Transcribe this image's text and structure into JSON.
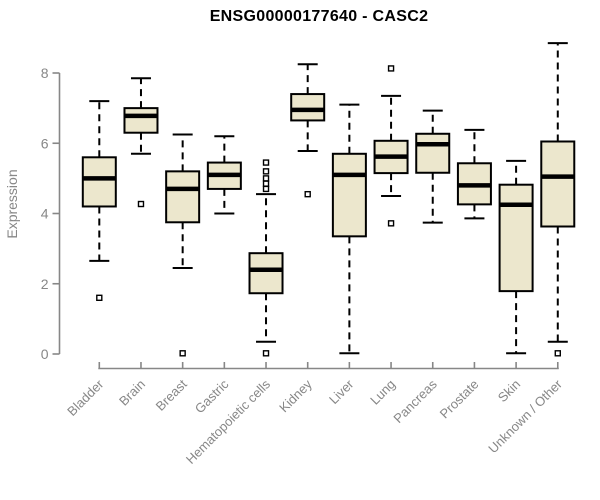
{
  "chart_data": {
    "type": "boxplot",
    "title": "ENSG00000177640 - CASC2",
    "ylabel": "Expression",
    "ylim": [
      0,
      8
    ],
    "yticks": [
      0,
      2,
      4,
      6,
      8
    ],
    "grid": false,
    "legend": "none",
    "categories": [
      "Bladder",
      "Brain",
      "Breast",
      "Gastric",
      "Hematopoietic cells",
      "Kidney",
      "Liver",
      "Lung",
      "Pancreas",
      "Prostate",
      "Skin",
      "Unknown / Other"
    ],
    "boxes": [
      {
        "category": "Bladder",
        "low": 2.65,
        "q1": 4.2,
        "median": 5.0,
        "q3": 5.6,
        "high": 7.2,
        "outliers": [
          1.6
        ]
      },
      {
        "category": "Brain",
        "low": 5.7,
        "q1": 6.3,
        "median": 6.78,
        "q3": 7.0,
        "high": 7.85,
        "outliers": [
          4.27
        ]
      },
      {
        "category": "Breast",
        "low": 2.45,
        "q1": 3.75,
        "median": 4.7,
        "q3": 5.2,
        "high": 6.25,
        "outliers": [
          0.02
        ]
      },
      {
        "category": "Gastric",
        "low": 4.0,
        "q1": 4.7,
        "median": 5.1,
        "q3": 5.45,
        "high": 6.2,
        "outliers": []
      },
      {
        "category": "Hematopoietic cells",
        "low": 0.35,
        "q1": 1.73,
        "median": 2.4,
        "q3": 2.87,
        "high": 4.55,
        "outliers": [
          5.45,
          5.2,
          5.0,
          4.85,
          4.7,
          0.02
        ]
      },
      {
        "category": "Kidney",
        "low": 5.78,
        "q1": 6.65,
        "median": 6.95,
        "q3": 7.4,
        "high": 8.25,
        "outliers": [
          4.55
        ]
      },
      {
        "category": "Liver",
        "low": 0.02,
        "q1": 3.35,
        "median": 5.1,
        "q3": 5.7,
        "high": 7.1,
        "outliers": []
      },
      {
        "category": "Lung",
        "low": 4.5,
        "q1": 5.15,
        "median": 5.62,
        "q3": 6.07,
        "high": 7.35,
        "outliers": [
          8.13,
          3.72
        ]
      },
      {
        "category": "Pancreas",
        "low": 3.74,
        "q1": 5.16,
        "median": 5.97,
        "q3": 6.27,
        "high": 6.93,
        "outliers": []
      },
      {
        "category": "Prostate",
        "low": 3.86,
        "q1": 4.26,
        "median": 4.8,
        "q3": 5.43,
        "high": 6.38,
        "outliers": []
      },
      {
        "category": "Skin",
        "low": 0.02,
        "q1": 1.79,
        "median": 4.25,
        "q3": 4.82,
        "high": 5.5,
        "outliers": []
      },
      {
        "category": "Unknown / Other",
        "low": 0.35,
        "q1": 3.63,
        "median": 5.05,
        "q3": 6.05,
        "high": 8.85,
        "outliers": [
          0.02
        ]
      }
    ],
    "colors": {
      "box_fill": "#ece7cd",
      "box_stroke": "#000000",
      "median": "#000000",
      "axis": "#878787",
      "tick_label": "#878787",
      "title": "#000000",
      "background": "#ffffff"
    }
  }
}
